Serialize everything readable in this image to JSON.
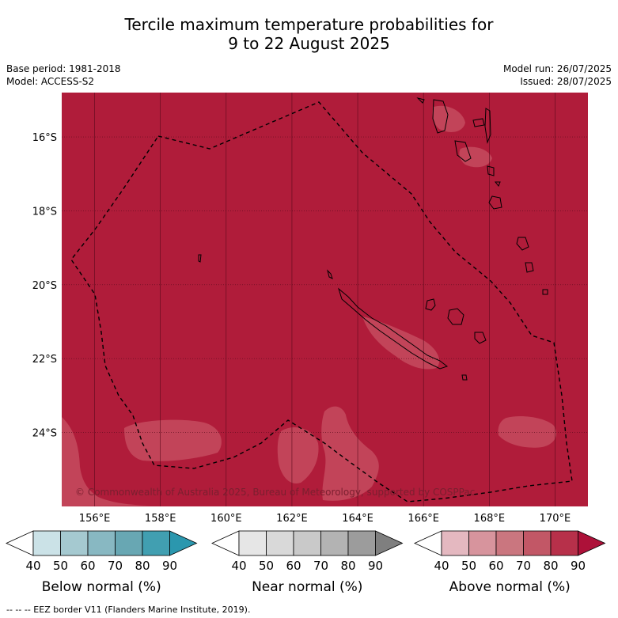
{
  "title": {
    "line1": "Tercile maximum temperature probabilities for",
    "line2": "9 to 22 August 2025"
  },
  "info_left": {
    "base_period": "Base period: 1981-2018",
    "model": "Model: ACCESS-S2"
  },
  "info_right": {
    "model_run": "Model run: 26/07/2025",
    "issued": "Issued: 28/07/2025"
  },
  "map": {
    "lon_range": [
      155.0,
      171.0
    ],
    "lat_range": [
      -26.0,
      -14.8
    ],
    "lat_ticks": [
      {
        "value": -16,
        "label": "16°S"
      },
      {
        "value": -18,
        "label": "18°S"
      },
      {
        "value": -20,
        "label": "20°S"
      },
      {
        "value": -22,
        "label": "22°S"
      },
      {
        "value": -24,
        "label": "24°S"
      }
    ],
    "lon_ticks": [
      {
        "value": 156,
        "label": "156°E"
      },
      {
        "value": 158,
        "label": "158°E"
      },
      {
        "value": 160,
        "label": "160°E"
      },
      {
        "value": 162,
        "label": "162°E"
      },
      {
        "value": 164,
        "label": "164°E"
      },
      {
        "value": 166,
        "label": "166°E"
      },
      {
        "value": 168,
        "label": "168°E"
      },
      {
        "value": 170,
        "label": "170°E"
      }
    ],
    "base_color": "#b01c3a",
    "patch_color": "#c24459",
    "copyright": "© Commonwealth of Australia 2025, Bureau of Meteorology, supported by COSPPac"
  },
  "legends": [
    {
      "name": "below-normal",
      "label": "Below normal (%)",
      "colors": [
        "#ffffff",
        "#cbe2e7",
        "#a5c9d0",
        "#88b8c2",
        "#68a7b3",
        "#419fb1",
        "#2b97ae"
      ]
    },
    {
      "name": "near-normal",
      "label": "Near normal (%)",
      "colors": [
        "#ffffff",
        "#e6e6e6",
        "#d9d9d9",
        "#c9c9c9",
        "#b3b3b3",
        "#9c9c9c",
        "#7f7f7f"
      ]
    },
    {
      "name": "above-normal",
      "label": "Above normal (%)",
      "colors": [
        "#ffffff",
        "#e4b8c0",
        "#d7949d",
        "#ca767f",
        "#c25766",
        "#b7304a",
        "#ad1139"
      ]
    }
  ],
  "legend_ticks": [
    "40",
    "50",
    "60",
    "70",
    "80",
    "90"
  ],
  "footer": "--  --  -- EEZ border V11 (Flanders Marine Institute, 2019)."
}
